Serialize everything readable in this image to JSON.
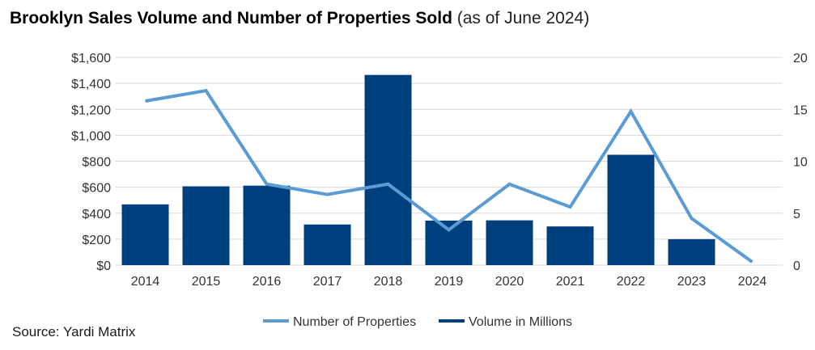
{
  "title": "Brooklyn Sales Volume and Number of Properties Sold",
  "subtitle": "(as of June 2024)",
  "source": "Source: Yardi Matrix",
  "colors": {
    "bar": "#003f7d",
    "line": "#5b9bd5",
    "grid": "#d9d9d9",
    "text": "#333333"
  },
  "chart_data": {
    "type": "bar",
    "categories": [
      "2014",
      "2015",
      "2016",
      "2017",
      "2018",
      "2019",
      "2020",
      "2021",
      "2022",
      "2023",
      "2024"
    ],
    "series": [
      {
        "name": "Volume in Millions",
        "type": "bar",
        "axis": "left",
        "values": [
          468,
          607,
          612,
          313,
          1465,
          343,
          345,
          298,
          850,
          200,
          0
        ]
      },
      {
        "name": "Number of Properties",
        "type": "line",
        "axis": "right",
        "values": [
          15.8,
          16.8,
          7.8,
          6.8,
          7.8,
          3.4,
          7.8,
          5.6,
          14.8,
          4.5,
          0.3
        ]
      }
    ],
    "ylim": [
      0,
      1600
    ],
    "y2lim": [
      0,
      20
    ],
    "yticks": [
      "$0",
      "$200",
      "$400",
      "$600",
      "$800",
      "$1,000",
      "$1,200",
      "$1,400",
      "$1,600"
    ],
    "y2ticks": [
      "0",
      "5",
      "10",
      "15",
      "20"
    ],
    "legend": [
      "Number of Properties",
      "Volume in Millions"
    ],
    "legend_position": "bottom",
    "grid": true
  }
}
